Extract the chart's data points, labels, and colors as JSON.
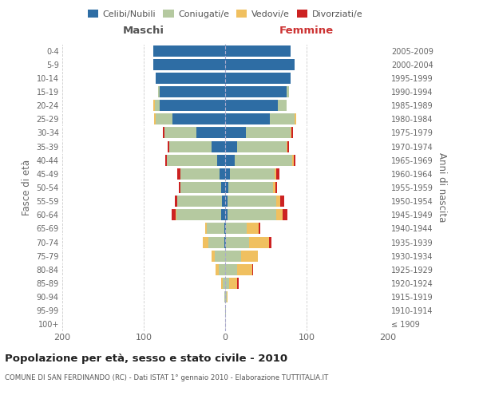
{
  "age_groups": [
    "100+",
    "95-99",
    "90-94",
    "85-89",
    "80-84",
    "75-79",
    "70-74",
    "65-69",
    "60-64",
    "55-59",
    "50-54",
    "45-49",
    "40-44",
    "35-39",
    "30-34",
    "25-29",
    "20-24",
    "15-19",
    "10-14",
    "5-9",
    "0-4"
  ],
  "birth_years": [
    "≤ 1909",
    "1910-1914",
    "1915-1919",
    "1920-1924",
    "1925-1929",
    "1930-1934",
    "1935-1939",
    "1940-1944",
    "1945-1949",
    "1950-1954",
    "1955-1959",
    "1960-1964",
    "1965-1969",
    "1970-1974",
    "1975-1979",
    "1980-1984",
    "1985-1989",
    "1990-1994",
    "1995-1999",
    "2000-2004",
    "2005-2009"
  ],
  "males": {
    "celibi": [
      0,
      0,
      0,
      0,
      0,
      0,
      1,
      1,
      5,
      4,
      5,
      7,
      10,
      17,
      35,
      65,
      80,
      80,
      85,
      88,
      88
    ],
    "coniugati": [
      0,
      0,
      1,
      3,
      8,
      13,
      20,
      22,
      55,
      55,
      50,
      48,
      62,
      52,
      40,
      20,
      6,
      2,
      0,
      0,
      0
    ],
    "vedovi": [
      0,
      0,
      0,
      2,
      4,
      4,
      6,
      2,
      1,
      0,
      0,
      0,
      0,
      0,
      0,
      2,
      2,
      0,
      0,
      0,
      0
    ],
    "divorziati": [
      0,
      0,
      0,
      0,
      0,
      0,
      0,
      0,
      5,
      3,
      2,
      4,
      2,
      2,
      1,
      0,
      0,
      0,
      0,
      0,
      0
    ]
  },
  "females": {
    "nubili": [
      0,
      0,
      0,
      0,
      0,
      0,
      1,
      1,
      3,
      3,
      4,
      6,
      12,
      15,
      25,
      55,
      65,
      75,
      80,
      85,
      80
    ],
    "coniugate": [
      0,
      1,
      2,
      5,
      15,
      20,
      28,
      25,
      60,
      60,
      55,
      55,
      70,
      60,
      55,
      30,
      10,
      3,
      0,
      0,
      0
    ],
    "vedove": [
      0,
      0,
      1,
      10,
      18,
      20,
      25,
      15,
      8,
      5,
      3,
      2,
      2,
      1,
      1,
      2,
      0,
      0,
      0,
      0,
      0
    ],
    "divorziate": [
      0,
      0,
      0,
      2,
      1,
      0,
      3,
      2,
      5,
      5,
      2,
      4,
      2,
      2,
      2,
      0,
      0,
      0,
      0,
      0,
      0
    ]
  },
  "colors": {
    "celibi": "#2e6da4",
    "coniugati": "#b5c9a0",
    "vedovi": "#f0c060",
    "divorziati": "#cc2222"
  },
  "legend_labels": [
    "Celibi/Nubili",
    "Coniugati/e",
    "Vedovi/e",
    "Divorziati/e"
  ],
  "xlim": 200,
  "title": "Popolazione per età, sesso e stato civile - 2010",
  "subtitle": "COMUNE DI SAN FERDINANDO (RC) - Dati ISTAT 1° gennaio 2010 - Elaborazione TUTTITALIA.IT",
  "xlabel_left": "Maschi",
  "xlabel_right": "Femmine",
  "ylabel_left": "Fasce di età",
  "ylabel_right": "Anni di nascita",
  "bg_color": "#ffffff",
  "grid_color": "#cccccc"
}
